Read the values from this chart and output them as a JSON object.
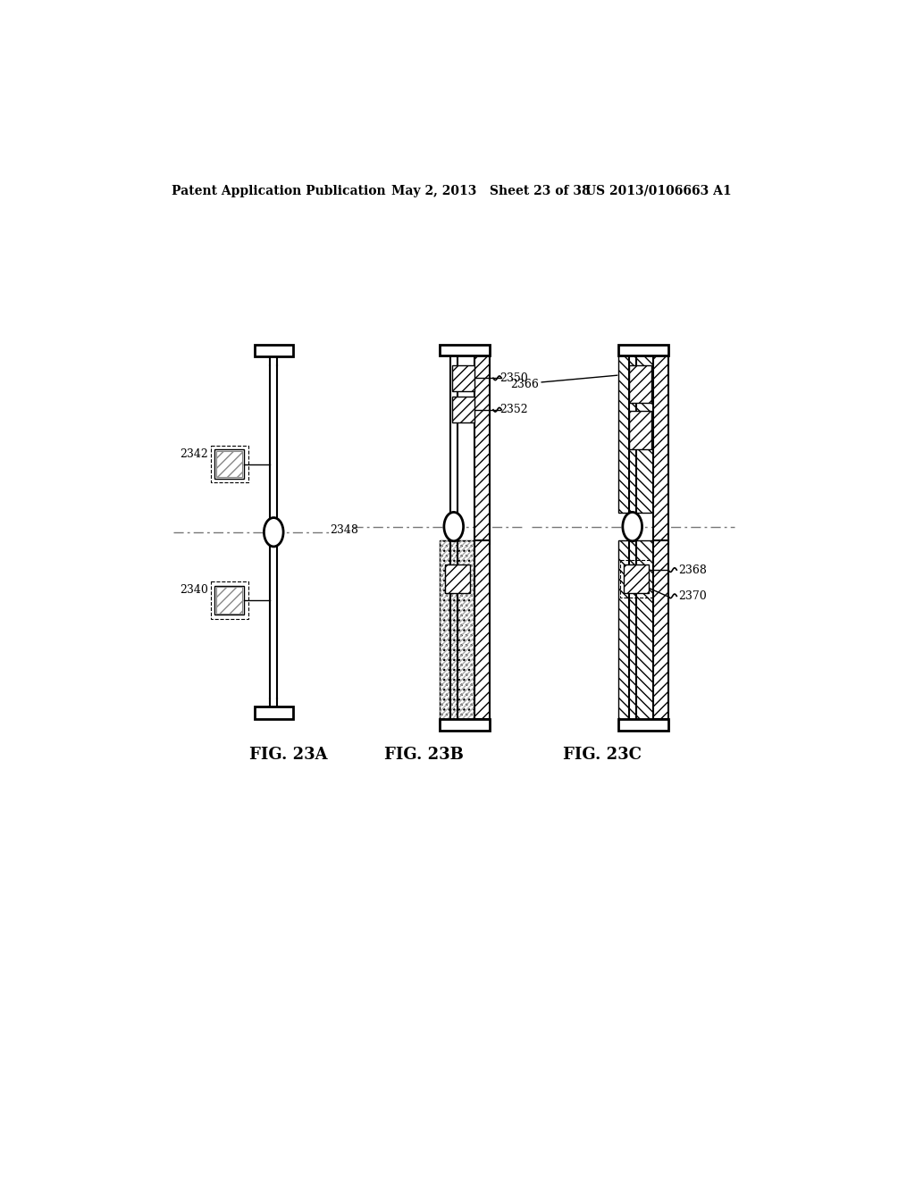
{
  "bg_color": "#ffffff",
  "header_left": "Patent Application Publication",
  "header_mid": "May 2, 2013   Sheet 23 of 38",
  "header_right": "US 2013/0106663 A1",
  "black": "#000000",
  "gray": "#999999",
  "fig_a_label": "FIG. 23A",
  "fig_b_label": "FIG. 23B",
  "fig_c_label": "FIG. 23C",
  "label_2340": "2340",
  "label_2342": "2342",
  "label_2348": "2348",
  "label_2350": "2350",
  "label_2352": "2352",
  "label_2366": "2366",
  "label_2368": "2368",
  "label_2370": "2370"
}
